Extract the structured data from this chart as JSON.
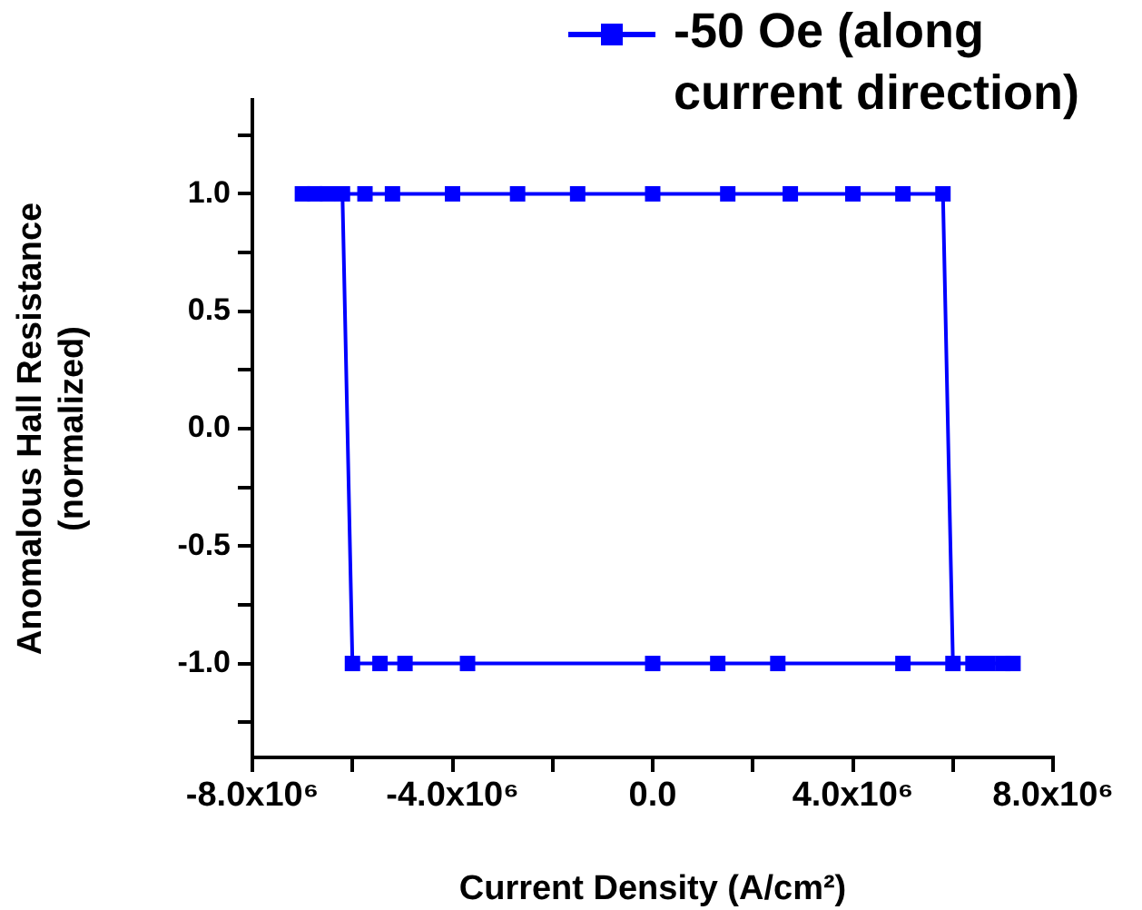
{
  "chart_data": {
    "type": "line",
    "xlabel": "Current Density (A/cm²)",
    "ylabel": "Anomalous Hall Resistance\n(normalized)",
    "series": [
      {
        "name": "-50 Oe (along current direction)",
        "color": "#0000ff",
        "x": [
          -7000000,
          -6750000,
          -6500000,
          -5750000,
          -5200000,
          -4000000,
          -2700000,
          -1500000,
          0,
          1500000,
          2750000,
          4000000,
          5000000,
          5800000,
          6000000,
          6400000,
          6700000,
          7000000,
          7200000,
          5000000,
          2500000,
          1300000,
          0,
          -3700000,
          -4950000,
          -5450000,
          -6000000,
          -6200000
        ],
        "values": [
          1,
          1,
          1,
          1,
          1,
          1,
          1,
          1,
          1,
          1,
          1,
          1,
          1,
          1,
          -1,
          -1,
          -1,
          -1,
          -1,
          -1,
          -1,
          -1,
          -1,
          -1,
          -1,
          -1,
          -1,
          1
        ]
      }
    ],
    "xlim": [
      -8000000,
      8000000
    ],
    "xticks": [
      {
        "value": -8000000,
        "label": "-8.0x10⁶"
      },
      {
        "value": -6000000,
        "label": null
      },
      {
        "value": -4000000,
        "label": "-4.0x10⁶"
      },
      {
        "value": -2000000,
        "label": null
      },
      {
        "value": 0,
        "label": "0.0"
      },
      {
        "value": 2000000,
        "label": null
      },
      {
        "value": 4000000,
        "label": "4.0x10⁶"
      },
      {
        "value": 6000000,
        "label": null
      },
      {
        "value": 8000000,
        "label": "8.0x10⁶"
      }
    ],
    "ylim": [
      -1.4,
      1.4
    ],
    "yticks": [
      {
        "value": -1.25,
        "label": null
      },
      {
        "value": -1,
        "label": "-1.0"
      },
      {
        "value": -0.75,
        "label": null
      },
      {
        "value": -0.5,
        "label": "-0.5"
      },
      {
        "value": -0.25,
        "label": null
      },
      {
        "value": 0,
        "label": "0.0"
      },
      {
        "value": 0.25,
        "label": null
      },
      {
        "value": 0.5,
        "label": "0.5"
      },
      {
        "value": 0.75,
        "label": null
      },
      {
        "value": 1,
        "label": "1.0"
      },
      {
        "value": 1.25,
        "label": null
      }
    ],
    "grid": false,
    "legend": "top right",
    "marker": "square",
    "line_style": "solid"
  }
}
